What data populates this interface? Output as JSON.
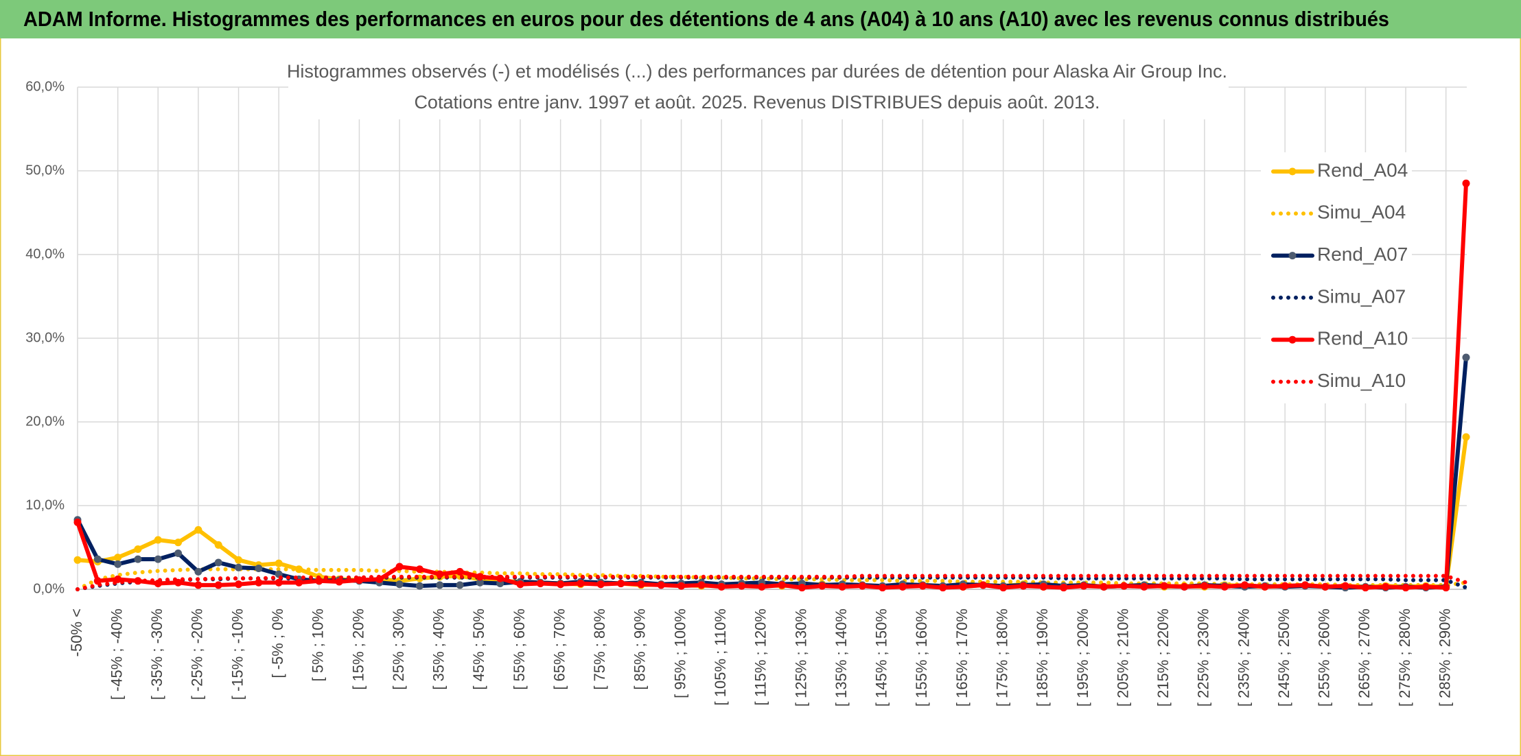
{
  "chart_data": {
    "type": "line",
    "header": "ADAM Informe. Histogrammes des performances en euros pour des détentions de 4 ans (A04) à 10 ans (A10) avec les revenus connus distribués",
    "title": "Histogrammes observés (-) et modélisés (...) des performances par durées de détention pour Alaska Air Group Inc.",
    "subtitle": "Cotations entre janv. 1997 et août. 2025. Revenus DISTRIBUES depuis août. 2013.",
    "categories": [
      "-50% <",
      null,
      "[ -45% ; -40%",
      null,
      "[ -35% ; -30%",
      null,
      "[ -25% ; -20%",
      null,
      "[ -15% ; -10%",
      null,
      "[ -5% ; 0%",
      null,
      "[ 5% ; 10%",
      null,
      "[ 15% ; 20%",
      null,
      "[ 25% ; 30%",
      null,
      "[ 35% ; 40%",
      null,
      "[ 45% ; 50%",
      null,
      "[ 55% ; 60%",
      null,
      "[ 65% ; 70%",
      null,
      "[ 75% ; 80%",
      null,
      "[ 85% ; 90%",
      null,
      "[ 95% ; 100%",
      null,
      "[ 105% ; 110%",
      null,
      "[ 115% ; 120%",
      null,
      "[ 125% ; 130%",
      null,
      "[ 135% ; 140%",
      null,
      "[ 145% ; 150%",
      null,
      "[ 155% ; 160%",
      null,
      "[ 165% ; 170%",
      null,
      "[ 175% ; 180%",
      null,
      "[ 185% ; 190%",
      null,
      "[ 195% ; 200%",
      null,
      "[ 205% ; 210%",
      null,
      "[ 215% ; 220%",
      null,
      "[ 225% ; 230%",
      null,
      "[ 235% ; 240%",
      null,
      "[ 245% ; 250%",
      null,
      "[ 255% ; 260%",
      null,
      "[ 265% ; 270%",
      null,
      "[ 275% ; 280%",
      null,
      "[ 285% ; 290%",
      null
    ],
    "series": [
      {
        "name": "Rend_A04",
        "color": "#FFC000",
        "style": "solid",
        "values": [
          3.5,
          3.3,
          3.8,
          4.8,
          5.9,
          5.6,
          7.1,
          5.3,
          3.5,
          2.9,
          3.1,
          2.4,
          1.5,
          1.2,
          1.1,
          1.2,
          1.0,
          1.3,
          1.5,
          1.6,
          1.2,
          1.0,
          0.9,
          0.8,
          0.7,
          0.6,
          0.8,
          0.7,
          0.5,
          0.6,
          0.5,
          0.4,
          0.5,
          0.6,
          0.5,
          0.4,
          0.5,
          0.6,
          0.4,
          0.5,
          0.3,
          0.4,
          0.5,
          0.4,
          0.3,
          0.5,
          0.4,
          0.6,
          0.3,
          0.4,
          0.5,
          0.3,
          0.4,
          0.5,
          0.3,
          0.4,
          0.3,
          0.5,
          0.4,
          0.3,
          0.4,
          0.5,
          0.3,
          0.4,
          0.3,
          0.4,
          0.3,
          0.4,
          0.3,
          18.2
        ]
      },
      {
        "name": "Simu_A04",
        "color": "#FFC000",
        "style": "dotted",
        "values": [
          0,
          1.2,
          1.7,
          2.0,
          2.2,
          2.3,
          2.4,
          2.4,
          2.4,
          2.4,
          2.4,
          2.4,
          2.3,
          2.3,
          2.3,
          2.2,
          2.2,
          2.1,
          2.1,
          2.0,
          2.0,
          1.9,
          1.9,
          1.8,
          1.8,
          1.7,
          1.7,
          1.6,
          1.6,
          1.5,
          1.5,
          1.4,
          1.4,
          1.3,
          1.3,
          1.2,
          1.2,
          1.2,
          1.1,
          1.1,
          1.1,
          1.0,
          1.0,
          1.0,
          0.9,
          0.9,
          0.9,
          0.9,
          0.8,
          0.8,
          0.8,
          0.8,
          0.7,
          0.7,
          0.7,
          0.7,
          0.7,
          0.6,
          0.6,
          0.6,
          0.6,
          0.6,
          0.6,
          0.5,
          0.5,
          0.5,
          0.5,
          0.5,
          0.5,
          0.8
        ]
      },
      {
        "name": "Rend_A07",
        "color": "#002060",
        "style": "solid",
        "values": [
          8.3,
          3.6,
          3.0,
          3.6,
          3.6,
          4.3,
          2.1,
          3.2,
          2.6,
          2.5,
          1.8,
          1.2,
          1.0,
          1.1,
          1.0,
          0.8,
          0.6,
          0.4,
          0.5,
          0.5,
          0.8,
          0.7,
          0.9,
          0.8,
          0.7,
          0.9,
          0.8,
          0.7,
          0.8,
          0.6,
          0.7,
          0.8,
          0.6,
          0.7,
          0.8,
          0.6,
          0.7,
          0.5,
          0.6,
          0.5,
          0.4,
          0.6,
          0.5,
          0.4,
          0.6,
          0.5,
          0.4,
          0.5,
          0.6,
          0.4,
          0.5,
          0.3,
          0.4,
          0.5,
          0.4,
          0.3,
          0.5,
          0.4,
          0.3,
          0.4,
          0.3,
          0.4,
          0.3,
          0.2,
          0.3,
          0.2,
          0.3,
          0.2,
          0.3,
          27.7
        ]
      },
      {
        "name": "Simu_A07",
        "color": "#002060",
        "style": "dotted",
        "values": [
          0,
          0.4,
          0.7,
          0.9,
          1.0,
          1.1,
          1.2,
          1.2,
          1.3,
          1.3,
          1.3,
          1.3,
          1.4,
          1.4,
          1.4,
          1.4,
          1.4,
          1.4,
          1.4,
          1.4,
          1.4,
          1.4,
          1.4,
          1.4,
          1.4,
          1.4,
          1.4,
          1.4,
          1.4,
          1.4,
          1.4,
          1.4,
          1.4,
          1.4,
          1.4,
          1.4,
          1.4,
          1.4,
          1.4,
          1.4,
          1.4,
          1.4,
          1.4,
          1.4,
          1.4,
          1.4,
          1.4,
          1.4,
          1.4,
          1.3,
          1.3,
          1.3,
          1.3,
          1.3,
          1.3,
          1.3,
          1.3,
          1.3,
          1.2,
          1.2,
          1.2,
          1.2,
          1.2,
          1.2,
          1.2,
          1.2,
          1.1,
          1.1,
          1.1,
          0.2
        ]
      },
      {
        "name": "Rend_A10",
        "color": "#FF0000",
        "style": "solid",
        "values": [
          8.0,
          1.0,
          1.2,
          1.0,
          0.7,
          0.8,
          0.5,
          0.5,
          0.6,
          0.8,
          0.8,
          0.8,
          1.0,
          0.9,
          1.1,
          1.2,
          2.7,
          2.4,
          1.8,
          2.1,
          1.5,
          1.3,
          0.6,
          0.7,
          0.6,
          0.7,
          0.6,
          0.7,
          0.6,
          0.5,
          0.4,
          0.5,
          0.3,
          0.4,
          0.3,
          0.5,
          0.2,
          0.4,
          0.3,
          0.4,
          0.2,
          0.3,
          0.4,
          0.2,
          0.3,
          0.5,
          0.2,
          0.4,
          0.3,
          0.2,
          0.4,
          0.3,
          0.4,
          0.3,
          0.4,
          0.3,
          0.4,
          0.3,
          0.5,
          0.3,
          0.4,
          0.5,
          0.3,
          0.4,
          0.2,
          0.3,
          0.2,
          0.3,
          0.2,
          48.5
        ]
      },
      {
        "name": "Simu_A10",
        "color": "#FF0000",
        "style": "dotted",
        "values": [
          0,
          0.5,
          0.8,
          1.0,
          1.1,
          1.2,
          1.2,
          1.3,
          1.3,
          1.3,
          1.4,
          1.4,
          1.4,
          1.4,
          1.4,
          1.5,
          1.5,
          1.5,
          1.5,
          1.5,
          1.5,
          1.5,
          1.5,
          1.5,
          1.5,
          1.5,
          1.5,
          1.5,
          1.5,
          1.5,
          1.5,
          1.5,
          1.5,
          1.5,
          1.5,
          1.5,
          1.5,
          1.5,
          1.5,
          1.6,
          1.6,
          1.6,
          1.6,
          1.6,
          1.6,
          1.6,
          1.6,
          1.6,
          1.6,
          1.6,
          1.6,
          1.6,
          1.6,
          1.6,
          1.6,
          1.6,
          1.6,
          1.6,
          1.6,
          1.6,
          1.6,
          1.6,
          1.6,
          1.6,
          1.6,
          1.6,
          1.6,
          1.6,
          1.6,
          0.8
        ]
      }
    ],
    "ylim": [
      0,
      60
    ],
    "yticks": [
      {
        "value": 0,
        "label": "0,0%"
      },
      {
        "value": 10,
        "label": "10,0%"
      },
      {
        "value": 20,
        "label": "20,0%"
      },
      {
        "value": 30,
        "label": "30,0%"
      },
      {
        "value": 40,
        "label": "40,0%"
      },
      {
        "value": 50,
        "label": "50,0%"
      },
      {
        "value": 60,
        "label": "60,0%"
      }
    ],
    "grid": true,
    "legend": "right"
  }
}
